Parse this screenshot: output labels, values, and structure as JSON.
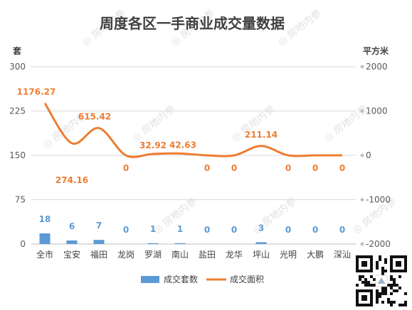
{
  "chart_data": {
    "type": "bar+line",
    "title": "周度各区一手商业成交量数据",
    "left_unit": "套",
    "right_unit": "平方米",
    "categories": [
      "全市",
      "宝安",
      "福田",
      "龙岗",
      "罗湖",
      "南山",
      "盐田",
      "龙华",
      "坪山",
      "光明",
      "大鹏",
      "深汕"
    ],
    "left_axis": {
      "ticks": [
        "0",
        "75",
        "150",
        "225",
        "300"
      ],
      "ylim": [
        0,
        300
      ]
    },
    "right_axis": {
      "ticks": [
        "-2000",
        "-1000",
        "0",
        "1000",
        "2000"
      ],
      "ylim": [
        -2000,
        2000
      ]
    },
    "series": [
      {
        "name": "成交套数",
        "type": "bar",
        "axis": "left",
        "color": "#5b9bd5",
        "values": [
          18,
          6,
          7,
          0,
          1,
          1,
          0,
          0,
          3,
          0,
          0,
          0
        ],
        "labels": [
          "18",
          "6",
          "7",
          "0",
          "1",
          "1",
          "0",
          "0",
          "3",
          "0",
          "0",
          "0"
        ]
      },
      {
        "name": "成交面积",
        "type": "line",
        "axis": "right",
        "smooth": true,
        "color": "#ed7d31",
        "values": [
          1176.27,
          274.16,
          615.42,
          0,
          32.92,
          42.63,
          0,
          0,
          211.14,
          0,
          0,
          0
        ],
        "labels": [
          "1176.27",
          "274.16",
          "615.42",
          "0",
          "32.92",
          "42.63",
          "0",
          "0",
          "211.14",
          "0",
          "0",
          "0"
        ]
      }
    ],
    "grid": "horizontal",
    "legend": "bottom"
  },
  "watermark": "房地内参"
}
